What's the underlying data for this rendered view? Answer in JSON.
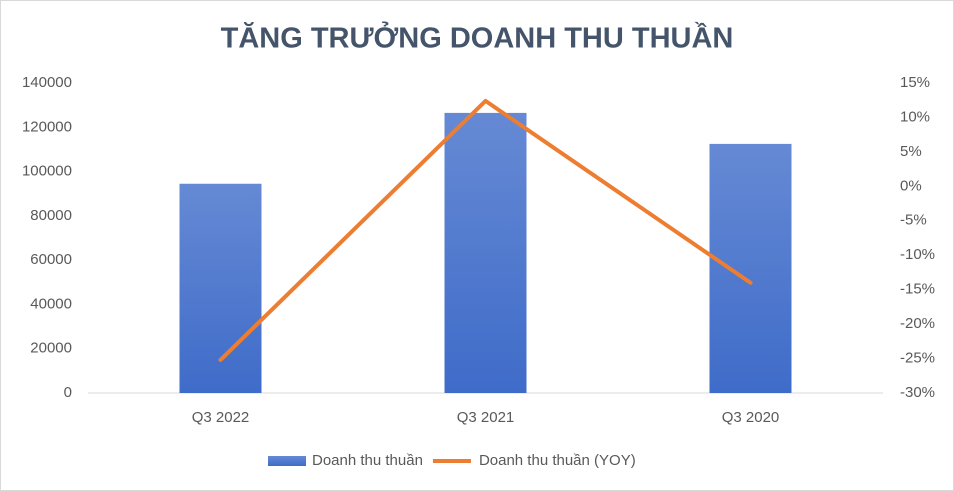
{
  "chart_data": {
    "type": "bar",
    "title": "TĂNG TRƯỞNG DOANH THU THUẦN",
    "categories": [
      "Q3 2022",
      "Q3 2021",
      "Q3 2020"
    ],
    "series": [
      {
        "name": "Doanh thu thuần",
        "type": "bar",
        "color": "#3f6cc9",
        "values": [
          94500,
          126500,
          112500
        ]
      },
      {
        "name": "Doanh thu thuần (YOY)",
        "type": "line",
        "color": "#ed7d31",
        "axis": "y2",
        "values": [
          -25.2,
          12.4,
          -14
        ]
      }
    ],
    "ylim": [
      0,
      140000
    ],
    "yticks": [
      0,
      20000,
      40000,
      60000,
      80000,
      100000,
      120000,
      140000
    ],
    "y2lim": [
      -30,
      15
    ],
    "y2ticks": [
      {
        "value": -30,
        "label": "-30%"
      },
      {
        "value": -25,
        "label": "-25%"
      },
      {
        "value": -20,
        "label": "-20%"
      },
      {
        "value": -15,
        "label": "-15%"
      },
      {
        "value": -10,
        "label": "-10%"
      },
      {
        "value": -5,
        "label": "-5%"
      },
      {
        "value": 0,
        "label": "0%"
      },
      {
        "value": 5,
        "label": "5%"
      },
      {
        "value": 10,
        "label": "10%"
      },
      {
        "value": 15,
        "label": "15%"
      }
    ],
    "grid": false,
    "legend": "bottom"
  }
}
